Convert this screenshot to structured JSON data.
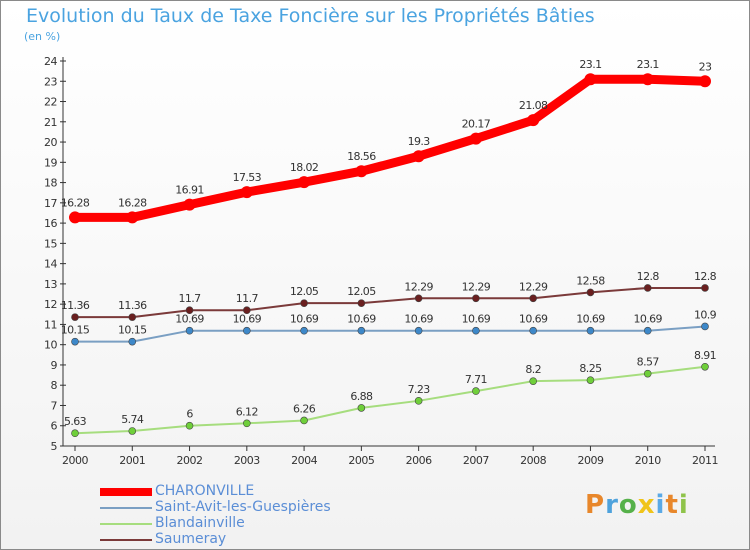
{
  "title": "Evolution du Taux de Taxe Foncière sur les Propriétés Bâties",
  "subtitle": "(en %)",
  "logo_text": "Proxiti",
  "colors": {
    "title": "#4aa3e0",
    "legend_text": "#5b8ed6",
    "axis": "#333333",
    "logo_letters": [
      "#e8872b",
      "#4ea2dc",
      "#56b14a",
      "#f0c419",
      "#5aa9e6",
      "#e8872b",
      "#8fc34a"
    ]
  },
  "chart_data": {
    "type": "line",
    "x": [
      "2000",
      "2001",
      "2002",
      "2003",
      "2004",
      "2005",
      "2006",
      "2007",
      "2008",
      "2009",
      "2010",
      "2011"
    ],
    "ylim": [
      5,
      24
    ],
    "yticks": [
      5,
      6,
      7,
      8,
      9,
      10,
      11,
      12,
      13,
      14,
      15,
      16,
      17,
      18,
      19,
      20,
      21,
      22,
      23,
      24
    ],
    "grid": false,
    "legend_position": "bottom-left",
    "series": [
      {
        "name": "CHARONVILLE",
        "color": "#ff0000",
        "marker_color": "#ff0000",
        "values": [
          16.28,
          16.28,
          16.91,
          17.53,
          18.02,
          18.56,
          19.3,
          20.17,
          21.08,
          23.1,
          23.1,
          23
        ],
        "labels": [
          "16.28",
          "16.28",
          "16.91",
          "17.53",
          "18.02",
          "18.56",
          "19.3",
          "20.17",
          "21.08",
          "23.1",
          "23.1",
          "23"
        ],
        "bold": true
      },
      {
        "name": "Saint-Avit-les-Guespières",
        "color": "#7a9fc3",
        "marker_color": "#3d88c9",
        "values": [
          10.15,
          10.15,
          10.69,
          10.69,
          10.69,
          10.69,
          10.69,
          10.69,
          10.69,
          10.69,
          10.69,
          10.9
        ],
        "labels": [
          "10.15",
          "10.15",
          "10.69",
          "10.69",
          "10.69",
          "10.69",
          "10.69",
          "10.69",
          "10.69",
          "10.69",
          "10.69",
          "10.9"
        ],
        "bold": false
      },
      {
        "name": "Blandainville",
        "color": "#a6dd7e",
        "marker_color": "#6fcf3a",
        "values": [
          5.63,
          5.74,
          6,
          6.12,
          6.26,
          6.88,
          7.23,
          7.71,
          8.2,
          8.25,
          8.57,
          8.91
        ],
        "labels": [
          "5.63",
          "5.74",
          "6",
          "6.12",
          "6.26",
          "6.88",
          "7.23",
          "7.71",
          "8.2",
          "8.25",
          "8.57",
          "8.91"
        ],
        "bold": false
      },
      {
        "name": "Saumeray",
        "color": "#7b3a3a",
        "marker_color": "#6a1f1f",
        "values": [
          11.36,
          11.36,
          11.7,
          11.7,
          12.05,
          12.05,
          12.29,
          12.29,
          12.29,
          12.58,
          12.8,
          12.8
        ],
        "labels": [
          "11.36",
          "11.36",
          "11.7",
          "11.7",
          "12.05",
          "12.05",
          "12.29",
          "12.29",
          "12.29",
          "12.58",
          "12.8",
          "12.8"
        ],
        "bold": false
      }
    ]
  }
}
